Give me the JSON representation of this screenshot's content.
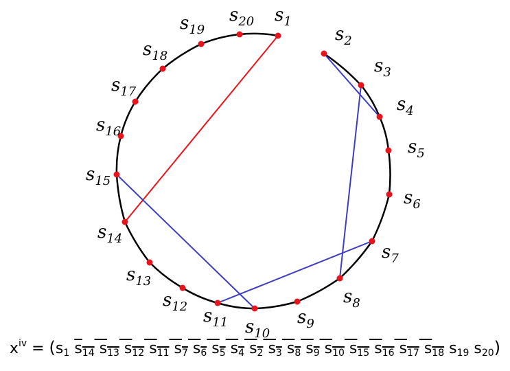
{
  "nodes": [
    {
      "base": "s",
      "sub": "1"
    },
    {
      "base": "s",
      "sub": "2"
    },
    {
      "base": "s",
      "sub": "3"
    },
    {
      "base": "s",
      "sub": "4"
    },
    {
      "base": "s",
      "sub": "5"
    },
    {
      "base": "s",
      "sub": "6"
    },
    {
      "base": "s",
      "sub": "7"
    },
    {
      "base": "s",
      "sub": "8"
    },
    {
      "base": "s",
      "sub": "9"
    },
    {
      "base": "s",
      "sub": "10"
    },
    {
      "base": "s",
      "sub": "11"
    },
    {
      "base": "s",
      "sub": "12"
    },
    {
      "base": "s",
      "sub": "13"
    },
    {
      "base": "s",
      "sub": "14"
    },
    {
      "base": "s",
      "sub": "15"
    },
    {
      "base": "s",
      "sub": "16"
    },
    {
      "base": "s",
      "sub": "17"
    },
    {
      "base": "s",
      "sub": "18"
    },
    {
      "base": "s",
      "sub": "19"
    },
    {
      "base": "s",
      "sub": "20"
    }
  ],
  "edges": [
    {
      "from": 1,
      "to": 14,
      "color": "#e8141c"
    },
    {
      "from": 15,
      "to": 10,
      "color": "#3d3dbf"
    },
    {
      "from": 11,
      "to": 7,
      "color": "#3d3dbf"
    },
    {
      "from": 2,
      "to": 4,
      "color": "#3d3dbf"
    },
    {
      "from": 3,
      "to": 8,
      "color": "#3d3dbf"
    }
  ],
  "formula": {
    "lhs": "x",
    "lhs_sup": "iv",
    "equals": "=",
    "open_paren": "(",
    "close_paren": ")",
    "terms": [
      {
        "base": "s",
        "sub": "1",
        "overline": false
      },
      {
        "base": "s",
        "sub": "14",
        "overline": true
      },
      {
        "base": "s",
        "sub": "13",
        "overline": true
      },
      {
        "base": "s",
        "sub": "12",
        "overline": true
      },
      {
        "base": "s",
        "sub": "11",
        "overline": true
      },
      {
        "base": "s",
        "sub": "7",
        "overline": true
      },
      {
        "base": "s",
        "sub": "6",
        "overline": true
      },
      {
        "base": "s",
        "sub": "5",
        "overline": true
      },
      {
        "base": "s",
        "sub": "4",
        "overline": true
      },
      {
        "base": "s",
        "sub": "2",
        "overline": true
      },
      {
        "base": "s",
        "sub": "3",
        "overline": true
      },
      {
        "base": "s",
        "sub": "8",
        "overline": true
      },
      {
        "base": "s",
        "sub": "9",
        "overline": true
      },
      {
        "base": "s",
        "sub": "10",
        "overline": true
      },
      {
        "base": "s",
        "sub": "15",
        "overline": true
      },
      {
        "base": "s",
        "sub": "16",
        "overline": true
      },
      {
        "base": "s",
        "sub": "17",
        "overline": true
      },
      {
        "base": "s",
        "sub": "18",
        "overline": true
      },
      {
        "base": "s",
        "sub": "19",
        "overline": false
      },
      {
        "base": "s",
        "sub": "20",
        "overline": false
      }
    ]
  },
  "colors": {
    "circle": "#000000",
    "node": "#e8141c",
    "red_edge": "#e8141c",
    "blue_edge": "#3d3dbf"
  }
}
